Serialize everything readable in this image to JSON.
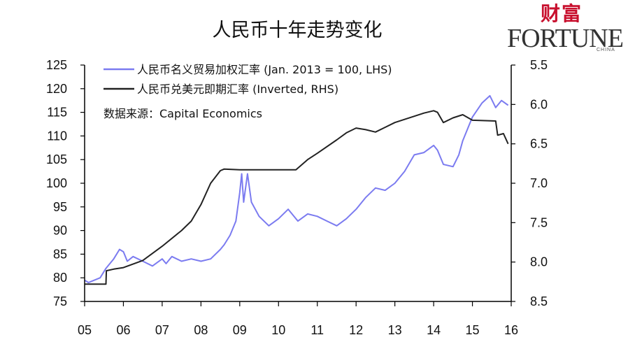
{
  "brand": {
    "cn": "财富",
    "en": "FORTUNE",
    "sub": "CHINA",
    "accent": "#c8102e"
  },
  "chart_data": {
    "type": "line",
    "title": "人民币十年走势变化",
    "source": "数据来源：Capital Economics",
    "x_ticks": [
      "05",
      "06",
      "07",
      "08",
      "09",
      "10",
      "11",
      "12",
      "13",
      "14",
      "15",
      "16"
    ],
    "xlim": [
      2005,
      2016
    ],
    "ylim_left": [
      75,
      125
    ],
    "left_ticks": [
      "75",
      "80",
      "85",
      "90",
      "95",
      "100",
      "105",
      "110",
      "115",
      "120",
      "125"
    ],
    "ylim_right": [
      8.5,
      5.5
    ],
    "right_ticks": [
      "5.5",
      "6.0",
      "6.5",
      "7.0",
      "7.5",
      "8.0",
      "8.5"
    ],
    "series": [
      {
        "name": "人民币名义贸易加权汇率 (Jan. 2013 = 100,  LHS)",
        "axis": "left",
        "color": "#7b7bf0",
        "points": [
          [
            2005.0,
            79.5
          ],
          [
            2005.1,
            79.0
          ],
          [
            2005.25,
            79.5
          ],
          [
            2005.4,
            80.0
          ],
          [
            2005.55,
            82.0
          ],
          [
            2005.75,
            84.0
          ],
          [
            2005.9,
            86.0
          ],
          [
            2006.0,
            85.5
          ],
          [
            2006.1,
            83.5
          ],
          [
            2006.25,
            84.5
          ],
          [
            2006.5,
            83.5
          ],
          [
            2006.75,
            82.5
          ],
          [
            2007.0,
            84.0
          ],
          [
            2007.1,
            83.0
          ],
          [
            2007.25,
            84.5
          ],
          [
            2007.5,
            83.5
          ],
          [
            2007.75,
            84.0
          ],
          [
            2008.0,
            83.5
          ],
          [
            2008.25,
            84.0
          ],
          [
            2008.5,
            86.0
          ],
          [
            2008.6,
            87.0
          ],
          [
            2008.75,
            89.0
          ],
          [
            2008.9,
            92.0
          ],
          [
            2009.0,
            98.0
          ],
          [
            2009.05,
            102.0
          ],
          [
            2009.1,
            96.0
          ],
          [
            2009.2,
            102.0
          ],
          [
            2009.3,
            96.0
          ],
          [
            2009.5,
            93.0
          ],
          [
            2009.75,
            91.0
          ],
          [
            2010.0,
            92.5
          ],
          [
            2010.25,
            94.5
          ],
          [
            2010.5,
            92.0
          ],
          [
            2010.75,
            93.5
          ],
          [
            2011.0,
            93.0
          ],
          [
            2011.25,
            92.0
          ],
          [
            2011.5,
            91.0
          ],
          [
            2011.75,
            92.5
          ],
          [
            2012.0,
            94.5
          ],
          [
            2012.25,
            97.0
          ],
          [
            2012.5,
            99.0
          ],
          [
            2012.75,
            98.5
          ],
          [
            2013.0,
            100.0
          ],
          [
            2013.25,
            102.5
          ],
          [
            2013.5,
            106.0
          ],
          [
            2013.75,
            106.5
          ],
          [
            2014.0,
            108.0
          ],
          [
            2014.1,
            107.0
          ],
          [
            2014.25,
            104.0
          ],
          [
            2014.5,
            103.5
          ],
          [
            2014.65,
            106.0
          ],
          [
            2014.75,
            109.0
          ],
          [
            2015.0,
            114.0
          ],
          [
            2015.25,
            117.0
          ],
          [
            2015.45,
            118.5
          ],
          [
            2015.6,
            116.0
          ],
          [
            2015.75,
            117.5
          ],
          [
            2015.92,
            116.5
          ]
        ]
      },
      {
        "name": "人民币兑美元即期汇率 (Inverted, RHS)",
        "axis": "right",
        "color": "#222222",
        "points": [
          [
            2005.0,
            8.28
          ],
          [
            2005.55,
            8.28
          ],
          [
            2005.56,
            8.11
          ],
          [
            2005.75,
            8.09
          ],
          [
            2006.0,
            8.07
          ],
          [
            2006.5,
            7.98
          ],
          [
            2007.0,
            7.8
          ],
          [
            2007.5,
            7.6
          ],
          [
            2007.75,
            7.48
          ],
          [
            2008.0,
            7.27
          ],
          [
            2008.25,
            7.0
          ],
          [
            2008.5,
            6.84
          ],
          [
            2008.6,
            6.82
          ],
          [
            2009.0,
            6.83
          ],
          [
            2010.0,
            6.83
          ],
          [
            2010.45,
            6.83
          ],
          [
            2010.75,
            6.7
          ],
          [
            2011.0,
            6.62
          ],
          [
            2011.5,
            6.45
          ],
          [
            2011.75,
            6.36
          ],
          [
            2012.0,
            6.3
          ],
          [
            2012.25,
            6.32
          ],
          [
            2012.5,
            6.35
          ],
          [
            2012.75,
            6.29
          ],
          [
            2013.0,
            6.23
          ],
          [
            2013.5,
            6.15
          ],
          [
            2013.75,
            6.11
          ],
          [
            2014.0,
            6.08
          ],
          [
            2014.1,
            6.1
          ],
          [
            2014.25,
            6.23
          ],
          [
            2014.5,
            6.17
          ],
          [
            2014.75,
            6.13
          ],
          [
            2015.0,
            6.2
          ],
          [
            2015.6,
            6.21
          ],
          [
            2015.65,
            6.39
          ],
          [
            2015.8,
            6.37
          ],
          [
            2015.92,
            6.5
          ]
        ]
      }
    ]
  }
}
